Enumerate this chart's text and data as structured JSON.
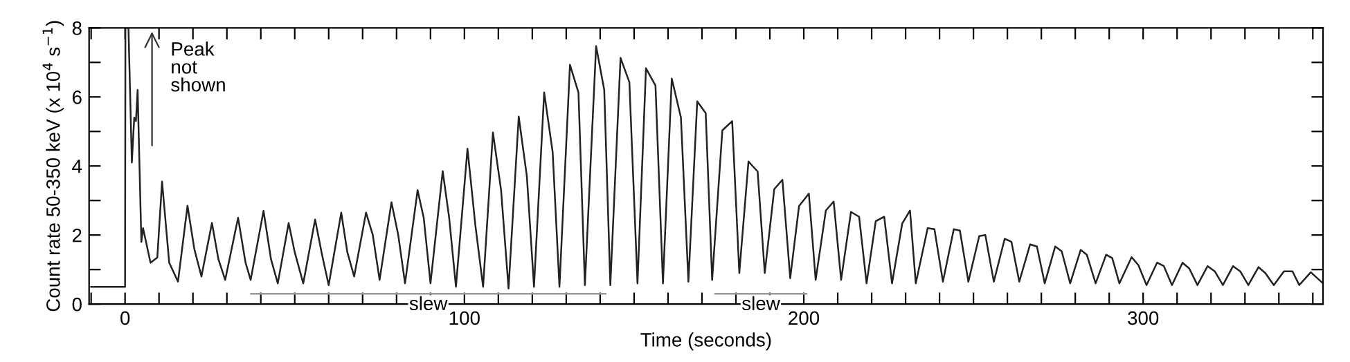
{
  "chart_data": {
    "type": "line",
    "xlabel": "Time (seconds)",
    "ylabel": "Count rate 50-350 keV (x 10$^{4}$ s$^{−1}$)",
    "xlim": [
      -10.6,
      353
    ],
    "ylim": [
      0,
      8
    ],
    "xticks": [
      {
        "value": -10,
        "label": null
      },
      0,
      {
        "value": 10,
        "label": null
      },
      {
        "value": 20,
        "label": null
      },
      {
        "value": 30,
        "label": null
      },
      {
        "value": 40,
        "label": null
      },
      {
        "value": 50,
        "label": null
      },
      {
        "value": 60,
        "label": null
      },
      {
        "value": 70,
        "label": null
      },
      {
        "value": 80,
        "label": null
      },
      {
        "value": 90,
        "label": null
      },
      100,
      {
        "value": 110,
        "label": null
      },
      {
        "value": 120,
        "label": null
      },
      {
        "value": 130,
        "label": null
      },
      {
        "value": 140,
        "label": null
      },
      {
        "value": 150,
        "label": null
      },
      {
        "value": 160,
        "label": null
      },
      {
        "value": 170,
        "label": null
      },
      {
        "value": 180,
        "label": null
      },
      {
        "value": 190,
        "label": null
      },
      200,
      {
        "value": 210,
        "label": null
      },
      {
        "value": 220,
        "label": null
      },
      {
        "value": 230,
        "label": null
      },
      {
        "value": 240,
        "label": null
      },
      {
        "value": 250,
        "label": null
      },
      {
        "value": 260,
        "label": null
      },
      {
        "value": 270,
        "label": null
      },
      {
        "value": 280,
        "label": null
      },
      {
        "value": 290,
        "label": null
      },
      300,
      {
        "value": 310,
        "label": null
      },
      {
        "value": 320,
        "label": null
      },
      {
        "value": 330,
        "label": null
      },
      {
        "value": 340,
        "label": null
      },
      {
        "value": 350,
        "label": null
      }
    ],
    "yticks": [
      0,
      {
        "value": 1,
        "label": null
      },
      2,
      {
        "value": 3,
        "label": null
      },
      4,
      {
        "value": 5,
        "label": null
      },
      6,
      {
        "value": 7,
        "label": null
      },
      8
    ],
    "grid": false,
    "legend": false,
    "marker": "none",
    "line_style": "solid",
    "annotations": [
      "Peak\nnot\nshown"
    ],
    "series": [
      {
        "name": "slew",
        "color": "#999999",
        "x": [
          37.1,
          141.6
        ],
        "values": [
          0.3,
          0.3
        ]
      },
      {
        "name": "slew",
        "color": "#999999",
        "x": [
          173.9,
          200.8
        ],
        "values": [
          0.3,
          0.3
        ]
      },
      {
        "color": "#222222",
        "x": [
          -10,
          -1,
          0,
          0.1,
          1.0,
          2.0,
          2.7,
          3.2,
          3.7,
          4.8,
          5.3,
          7.5,
          9.5,
          10.9,
          13,
          15.6,
          18.4,
          20.4,
          22.5,
          25.6,
          27.5,
          29.5,
          33.3,
          35.5,
          37,
          40.8,
          43,
          45,
          48.2,
          50,
          52.5,
          56,
          58,
          60,
          63.7,
          65.5,
          67.5,
          71,
          73,
          75,
          78.5,
          80.5,
          82.5,
          86.2,
          88,
          90,
          93.6,
          95.5,
          97.5,
          100.9,
          103.2,
          105.5,
          108.4,
          110.8,
          113,
          116,
          118.4,
          120.5,
          123.5,
          126,
          128,
          131.1,
          133.6,
          135.5,
          138.8,
          141.2,
          143,
          146,
          148.6,
          151,
          153.5,
          156.3,
          158.5,
          161.1,
          163.8,
          166,
          168.6,
          171.1,
          173,
          176,
          178.9,
          181,
          183.7,
          186.4,
          188.5,
          191.3,
          193.7,
          196,
          198.6,
          201.5,
          203.5,
          206.5,
          208.8,
          211,
          213.9,
          216.3,
          218.5,
          221.2,
          223.7,
          226,
          229,
          231.3,
          233,
          236.5,
          238.5,
          241,
          244.2,
          246,
          248.5,
          251.7,
          253.5,
          256,
          259.2,
          261.2,
          263.5,
          266.7,
          268.7,
          271,
          274.1,
          276,
          278.5,
          281.6,
          283.4,
          286,
          289.1,
          290.9,
          293,
          296.6,
          298.6,
          301,
          304.1,
          306.1,
          308.5,
          311.6,
          313.6,
          316,
          319,
          321.1,
          323.5,
          326.5,
          328.6,
          331,
          334,
          336,
          338.5,
          341.5,
          344,
          346,
          349.4,
          353
        ],
        "values": [
          0.5,
          0.5,
          0.5,
          8,
          8,
          4.1,
          5.4,
          5.3,
          6.2,
          1.8,
          2.2,
          1.2,
          1.35,
          3.55,
          1.2,
          0.65,
          2.85,
          1.6,
          0.8,
          2.35,
          1.3,
          0.7,
          2.5,
          1.2,
          0.7,
          2.7,
          1.3,
          0.6,
          2.35,
          1.5,
          0.6,
          2.45,
          1.45,
          0.55,
          2.65,
          1.5,
          0.8,
          2.65,
          2.0,
          0.7,
          2.95,
          2.0,
          0.6,
          3.3,
          2.5,
          0.6,
          3.85,
          2.5,
          0.5,
          4.5,
          2.3,
          0.5,
          4.97,
          3.3,
          0.45,
          5.43,
          3.7,
          0.5,
          6.13,
          4.4,
          0.5,
          6.93,
          6.13,
          0.55,
          7.47,
          6.2,
          0.55,
          7.13,
          6.43,
          0.6,
          6.83,
          6.33,
          0.6,
          6.53,
          5.4,
          0.65,
          5.87,
          5.53,
          0.7,
          5.03,
          5.3,
          0.9,
          4.13,
          3.84,
          0.9,
          3.33,
          3.6,
          0.75,
          2.84,
          3.2,
          0.7,
          2.71,
          2.97,
          0.7,
          2.67,
          2.53,
          0.6,
          2.4,
          2.53,
          0.6,
          2.33,
          2.71,
          0.6,
          2.2,
          2.17,
          0.65,
          2.17,
          2.13,
          0.65,
          1.97,
          2.0,
          0.65,
          1.89,
          1.8,
          0.65,
          1.73,
          1.67,
          0.6,
          1.67,
          1.53,
          0.6,
          1.57,
          1.43,
          0.6,
          1.43,
          1.33,
          0.6,
          1.36,
          1.13,
          0.55,
          1.2,
          1.1,
          0.55,
          1.2,
          1.03,
          0.55,
          1.1,
          0.95,
          0.55,
          1.1,
          0.95,
          0.55,
          1.07,
          0.9,
          0.55,
          0.95,
          0.95,
          0.55,
          0.92,
          0.6
        ]
      }
    ]
  }
}
